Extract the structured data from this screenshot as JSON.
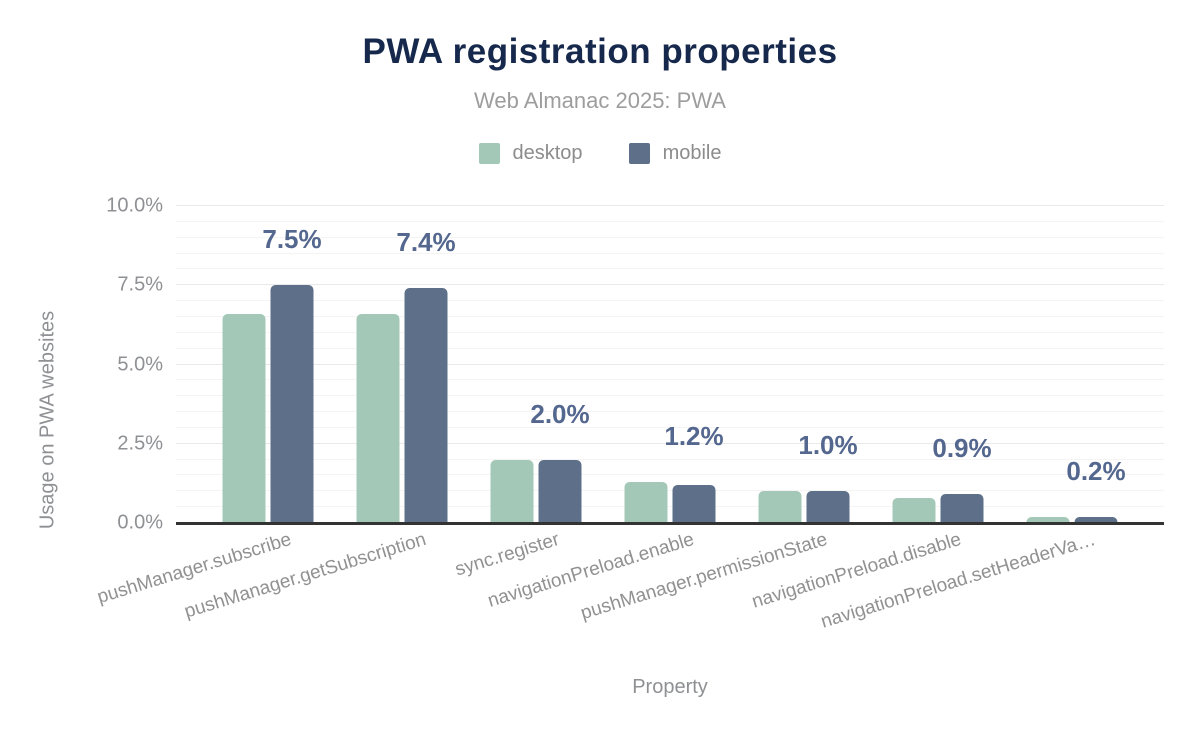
{
  "header": {
    "title": "PWA registration properties",
    "subtitle": "Web Almanac 2025: PWA"
  },
  "legend": [
    {
      "label": "desktop",
      "color": "#a4c8b7"
    },
    {
      "label": "mobile",
      "color": "#5e7089"
    }
  ],
  "colors": {
    "title": "#16294c",
    "subtitle": "#9d9d9d",
    "value_label": "#54678e",
    "tick_text": "#8e9093",
    "axis_line": "#333333",
    "grid_minor": "#f4f4f5",
    "grid_major": "#e9e9ea",
    "desktop_bar": "#a4c8b7",
    "mobile_bar": "#5e7089"
  },
  "chart_data": {
    "type": "bar",
    "title": "PWA registration properties",
    "subtitle": "Web Almanac 2025: PWA",
    "xlabel": "Property",
    "ylabel": "Usage on PWA websites",
    "ylim": [
      0,
      10
    ],
    "yticks": [
      "0.0%",
      "2.5%",
      "5.0%",
      "7.5%",
      "10.0%"
    ],
    "ytick_values": [
      0,
      2.5,
      5,
      7.5,
      10
    ],
    "minor_grid_step": 0.5,
    "grid": true,
    "legend_position": "top",
    "categories": [
      "pushManager.subscribe",
      "pushManager.getSubscription",
      "sync.register",
      "navigationPreload.enable",
      "pushManager.permissionState",
      "navigationPreload.disable",
      "navigationPreload.setHeaderVa…"
    ],
    "series": [
      {
        "name": "desktop",
        "color": "#a4c8b7",
        "values": [
          6.6,
          6.6,
          2.0,
          1.3,
          1.0,
          0.8,
          0.2
        ]
      },
      {
        "name": "mobile",
        "color": "#5e7089",
        "values": [
          7.5,
          7.4,
          2.0,
          1.2,
          1.0,
          0.9,
          0.2
        ]
      }
    ],
    "bar_labels": [
      "7.5%",
      "7.4%",
      "2.0%",
      "1.2%",
      "1.0%",
      "0.9%",
      "0.2%"
    ]
  }
}
